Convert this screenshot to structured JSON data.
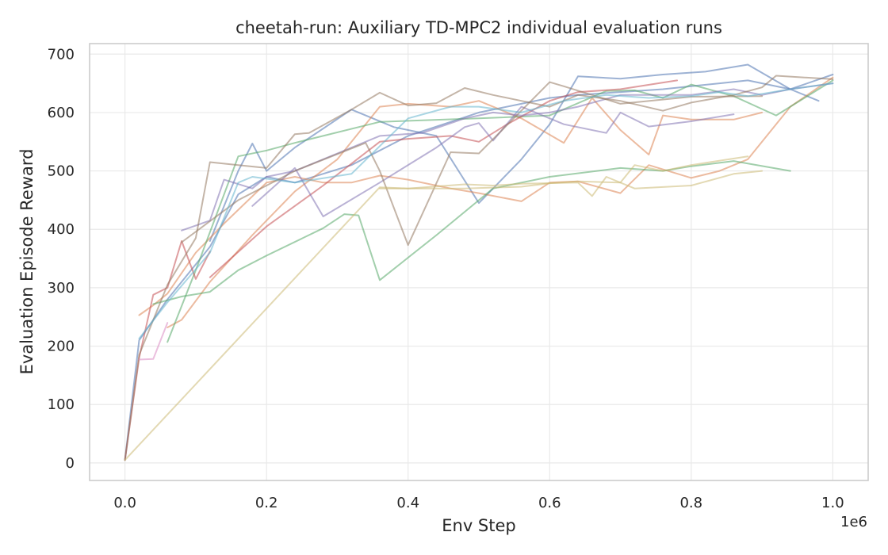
{
  "chart_data": {
    "type": "line",
    "title": "cheetah-run: Auxiliary TD-MPC2 individual evaluation runs",
    "xlabel": "Env Step",
    "ylabel": "Evaluation Episode Reward",
    "x_scale_note": "1e6",
    "xlim": [
      -0.05,
      1.05
    ],
    "ylim": [
      -30,
      718
    ],
    "x_ticks": [
      "0.0",
      "0.2",
      "0.4",
      "0.6",
      "0.8",
      "1.0"
    ],
    "x_tick_values": [
      0.0,
      0.2,
      0.4,
      0.6,
      0.8,
      1.0
    ],
    "y_ticks": [
      "0",
      "100",
      "200",
      "300",
      "400",
      "500",
      "600",
      "700"
    ],
    "y_tick_values": [
      0,
      100,
      200,
      300,
      400,
      500,
      600,
      700
    ],
    "grid": true,
    "legend": "none",
    "series": [
      {
        "color": "#4c72b0",
        "x": [
          0.0,
          0.02,
          0.06,
          0.12,
          0.16,
          0.2,
          0.24,
          0.32,
          0.4,
          0.5,
          0.56,
          0.6,
          0.64,
          0.7,
          0.76,
          0.8,
          0.84,
          0.88,
          0.94,
          1.0
        ],
        "y": [
          5,
          210,
          280,
          370,
          460,
          490,
          480,
          510,
          560,
          600,
          615,
          625,
          630,
          635,
          640,
          645,
          650,
          655,
          640,
          665
        ]
      },
      {
        "color": "#4c72b0",
        "x": [
          0.12,
          0.16,
          0.18,
          0.2,
          0.24,
          0.32,
          0.38,
          0.44,
          0.5,
          0.56,
          0.6,
          0.64,
          0.7,
          0.76,
          0.82,
          0.88,
          0.94,
          0.98
        ],
        "y": [
          380,
          500,
          547,
          500,
          540,
          605,
          575,
          560,
          445,
          520,
          580,
          662,
          658,
          665,
          670,
          682,
          640,
          620
        ]
      },
      {
        "color": "#dd8452",
        "x": [
          0.02,
          0.04,
          0.06,
          0.1,
          0.14,
          0.2,
          0.24,
          0.28,
          0.32,
          0.36,
          0.4,
          0.46,
          0.5,
          0.56,
          0.6,
          0.64,
          0.7,
          0.74,
          0.8,
          0.84,
          0.88,
          0.94,
          1.0
        ],
        "y": [
          253,
          270,
          290,
          360,
          410,
          480,
          490,
          480,
          480,
          492,
          485,
          470,
          462,
          448,
          480,
          482,
          462,
          510,
          488,
          500,
          520,
          610,
          660
        ]
      },
      {
        "color": "#dd8452",
        "x": [
          0.06,
          0.08,
          0.12,
          0.18,
          0.24,
          0.3,
          0.36,
          0.4,
          0.46,
          0.5,
          0.56,
          0.62,
          0.66,
          0.7,
          0.74,
          0.76,
          0.8,
          0.86,
          0.9
        ],
        "y": [
          232,
          245,
          310,
          390,
          465,
          520,
          610,
          615,
          610,
          620,
          590,
          548,
          625,
          570,
          528,
          595,
          588,
          588,
          600
        ]
      },
      {
        "color": "#55a868",
        "x": [
          0.04,
          0.08,
          0.12,
          0.16,
          0.2,
          0.28,
          0.31,
          0.33,
          0.36,
          0.44,
          0.52,
          0.6,
          0.7,
          0.76,
          0.8,
          0.86,
          0.94
        ],
        "y": [
          272,
          285,
          293,
          330,
          355,
          402,
          426,
          424,
          313,
          390,
          470,
          490,
          505,
          500,
          508,
          517,
          500
        ]
      },
      {
        "color": "#55a868",
        "x": [
          0.06,
          0.1,
          0.16,
          0.2,
          0.24,
          0.36,
          0.5,
          0.6,
          0.68,
          0.72,
          0.76,
          0.8,
          0.86,
          0.92,
          0.96,
          1.0
        ],
        "y": [
          207,
          330,
          525,
          535,
          548,
          584,
          590,
          595,
          637,
          638,
          625,
          648,
          628,
          595,
          625,
          655
        ]
      },
      {
        "color": "#c44e52",
        "x": [
          0.0,
          0.02,
          0.04,
          0.06,
          0.08,
          0.1,
          0.12
        ],
        "y": [
          5,
          180,
          288,
          300,
          380,
          315,
          362
        ]
      },
      {
        "color": "#c44e52",
        "x": [
          0.12,
          0.2,
          0.28,
          0.36,
          0.4,
          0.46,
          0.5,
          0.54,
          0.6,
          0.64,
          0.7,
          0.78
        ],
        "y": [
          318,
          405,
          475,
          550,
          555,
          560,
          550,
          580,
          620,
          635,
          640,
          655
        ]
      },
      {
        "color": "#8172b3",
        "x": [
          0.08,
          0.12,
          0.14,
          0.18,
          0.2,
          0.24,
          0.3,
          0.36,
          0.42,
          0.48,
          0.5,
          0.52,
          0.56,
          0.6,
          0.64,
          0.7,
          0.76,
          0.8,
          0.86,
          0.9,
          0.94,
          1.0
        ],
        "y": [
          398,
          415,
          485,
          470,
          490,
          500,
          530,
          560,
          565,
          590,
          595,
          600,
          595,
          600,
          610,
          630,
          630,
          630,
          640,
          630,
          640,
          650
        ]
      },
      {
        "color": "#8172b3",
        "x": [
          0.18,
          0.24,
          0.28,
          0.36,
          0.44,
          0.48,
          0.5,
          0.52,
          0.56,
          0.62,
          0.68,
          0.7,
          0.74,
          0.8,
          0.86
        ],
        "y": [
          440,
          505,
          422,
          480,
          540,
          575,
          582,
          552,
          610,
          580,
          565,
          600,
          576,
          585,
          597
        ]
      },
      {
        "color": "#937860",
        "x": [
          0.0,
          0.02,
          0.06,
          0.1,
          0.12,
          0.16,
          0.2,
          0.24,
          0.26,
          0.32,
          0.36,
          0.4,
          0.44,
          0.48,
          0.52,
          0.56,
          0.6,
          0.64,
          0.7,
          0.76,
          0.8,
          0.86,
          0.9,
          0.92,
          0.96,
          1.0
        ],
        "y": [
          5,
          185,
          305,
          385,
          515,
          510,
          505,
          563,
          565,
          605,
          634,
          612,
          616,
          642,
          630,
          620,
          610,
          630,
          620,
          603,
          617,
          630,
          643,
          663,
          660,
          657
        ]
      },
      {
        "color": "#937860",
        "x": [
          0.08,
          0.16,
          0.24,
          0.34,
          0.36,
          0.4,
          0.46,
          0.5,
          0.6,
          0.62,
          0.7,
          0.8,
          0.9
        ],
        "y": [
          378,
          450,
          500,
          548,
          500,
          373,
          532,
          530,
          652,
          645,
          615,
          627,
          628
        ]
      },
      {
        "color": "#da8bc3",
        "x": [
          0.02,
          0.04,
          0.06
        ],
        "y": [
          177,
          178,
          240
        ]
      },
      {
        "color": "#ccb974",
        "x": [
          0.0,
          0.36,
          0.4,
          0.48,
          0.52,
          0.56,
          0.64,
          0.66,
          0.68,
          0.72,
          0.8,
          0.86,
          0.9
        ],
        "y": [
          5,
          472,
          470,
          477,
          475,
          478,
          480,
          457,
          490,
          470,
          475,
          495,
          500
        ]
      },
      {
        "color": "#ccb974",
        "x": [
          0.36,
          0.48,
          0.56,
          0.6,
          0.64,
          0.7,
          0.72,
          0.76,
          0.8,
          0.88
        ],
        "y": [
          470,
          470,
          473,
          479,
          482,
          480,
          510,
          500,
          510,
          525
        ]
      },
      {
        "color": "#64b5cd",
        "x": [
          0.02,
          0.06,
          0.12,
          0.16,
          0.18,
          0.24,
          0.32,
          0.4,
          0.46,
          0.5,
          0.56,
          0.62,
          0.68,
          0.74,
          0.8,
          0.84,
          0.88,
          0.94,
          1.0
        ],
        "y": [
          213,
          275,
          360,
          480,
          490,
          480,
          495,
          590,
          610,
          610,
          600,
          620,
          630,
          625,
          628,
          635,
          628,
          640,
          650
        ]
      }
    ]
  }
}
